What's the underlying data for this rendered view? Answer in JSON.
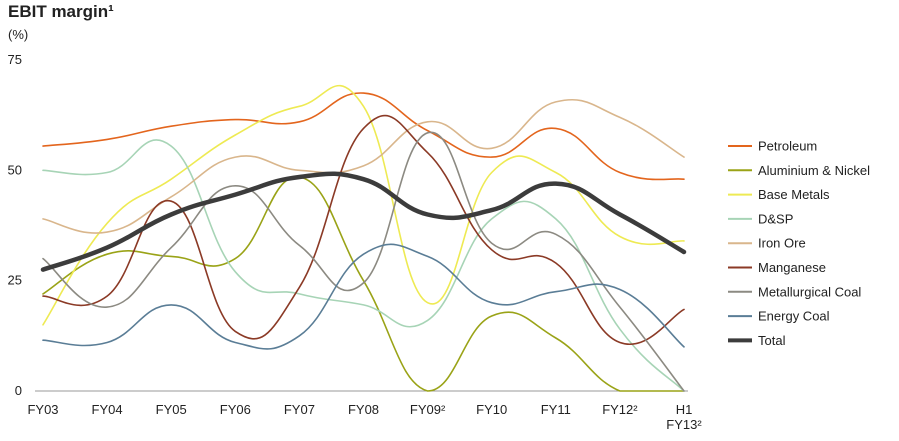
{
  "chart_data": {
    "type": "line",
    "title": "EBIT margin¹",
    "ylabel": "(%)",
    "xlabel": "",
    "categories": [
      "FY03",
      "FY04",
      "FY05",
      "FY06",
      "FY07",
      "FY08",
      "FY09²",
      "FY10",
      "FY11",
      "FY12²",
      "H1 FY13²"
    ],
    "category_lines": [
      [
        "FY03"
      ],
      [
        "FY04"
      ],
      [
        "FY05"
      ],
      [
        "FY06"
      ],
      [
        "FY07"
      ],
      [
        "FY08"
      ],
      [
        "FY09²"
      ],
      [
        "FY10"
      ],
      [
        "FY11"
      ],
      [
        "FY12²"
      ],
      [
        "H1",
        "FY13²"
      ]
    ],
    "ylim": [
      0,
      75
    ],
    "yticks": [
      "0",
      "25",
      "50",
      "75"
    ],
    "grid": false,
    "legend_position": "right",
    "series": [
      {
        "name": "Petroleum",
        "color": "#E3651D",
        "width": 1.6,
        "values": [
          55.5,
          57,
          60,
          61.5,
          61,
          67.5,
          59,
          53,
          59.5,
          49.5,
          48
        ]
      },
      {
        "name": "Aluminium & Nickel",
        "color": "#9AA317",
        "width": 1.6,
        "values": [
          22,
          31,
          30.5,
          30,
          48.5,
          25,
          0,
          17,
          12,
          0,
          0
        ]
      },
      {
        "name": "Base Metals",
        "color": "#EEEA53",
        "width": 1.6,
        "values": [
          15,
          38,
          48,
          58,
          64.5,
          64.5,
          20,
          49.5,
          49.5,
          35,
          34
        ]
      },
      {
        "name": "D&SP",
        "color": "#A7D4B6",
        "width": 1.6,
        "values": [
          50,
          49.5,
          55.5,
          27,
          22,
          19.5,
          16,
          39,
          39,
          14,
          0
        ]
      },
      {
        "name": "Iron Ore",
        "color": "#D9B68C",
        "width": 1.6,
        "values": [
          39,
          36,
          44,
          53,
          50,
          51,
          61,
          55,
          65.5,
          62,
          53
        ]
      },
      {
        "name": "Manganese",
        "color": "#8B3A26",
        "width": 1.6,
        "values": [
          21.5,
          21.5,
          43,
          13.5,
          23.5,
          59.5,
          54,
          32,
          29,
          11,
          18.5
        ]
      },
      {
        "name": "Metallurgical Coal",
        "color": "#8C8A82",
        "width": 1.6,
        "values": [
          30,
          19,
          32.5,
          46.5,
          33,
          24.5,
          58.5,
          33.5,
          35.5,
          19,
          0
        ]
      },
      {
        "name": "Energy Coal",
        "color": "#5A7D96",
        "width": 1.6,
        "values": [
          11.5,
          11,
          19.5,
          11,
          12.5,
          31,
          30.5,
          20,
          22.5,
          23,
          10
        ]
      },
      {
        "name": "Total",
        "color": "#3C3C3C",
        "width": 4.5,
        "values": [
          27.5,
          32.5,
          40,
          44.5,
          48.5,
          48,
          40,
          41,
          47,
          40,
          31.5
        ]
      }
    ]
  }
}
